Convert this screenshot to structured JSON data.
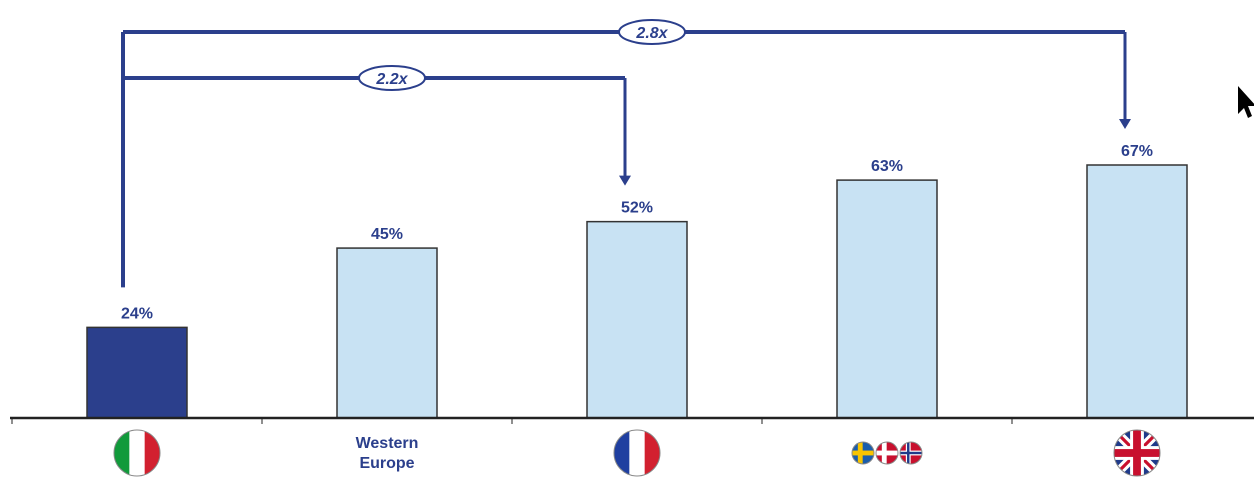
{
  "chart_data": {
    "type": "bar",
    "categories": [
      "italy-flag",
      "Western Europe",
      "france-flag",
      "nordics-flags",
      "uk-flag"
    ],
    "category_labels": [
      "",
      "Western Europe",
      "",
      "",
      ""
    ],
    "category_label_lines": [
      [],
      [
        "Western",
        "Europe"
      ],
      [],
      [],
      []
    ],
    "category_icons": [
      "italy-flag-icon",
      "",
      "france-flag-icon",
      "nordic-flags-icon",
      "uk-flag-icon"
    ],
    "values": [
      24,
      45,
      52,
      63,
      67
    ],
    "value_labels": [
      "24%",
      "45%",
      "52%",
      "63%",
      "67%"
    ],
    "highlight_index": 0,
    "ylim": [
      0,
      67
    ],
    "grid": false,
    "title": "",
    "xlabel": "",
    "ylabel": "",
    "annotations": [
      {
        "label": "2.2x",
        "from_index": 0,
        "to_index": 2
      },
      {
        "label": "2.8x",
        "from_index": 0,
        "to_index": 4
      }
    ]
  },
  "colors": {
    "highlight_bar": "#2b3f8c",
    "bar": "#c8e2f3",
    "bar_border": "#333333",
    "text": "#2b3f8c",
    "arrow": "#2b3f8c",
    "axis": "#222222"
  },
  "cursor_icon": "mouse-pointer-icon"
}
